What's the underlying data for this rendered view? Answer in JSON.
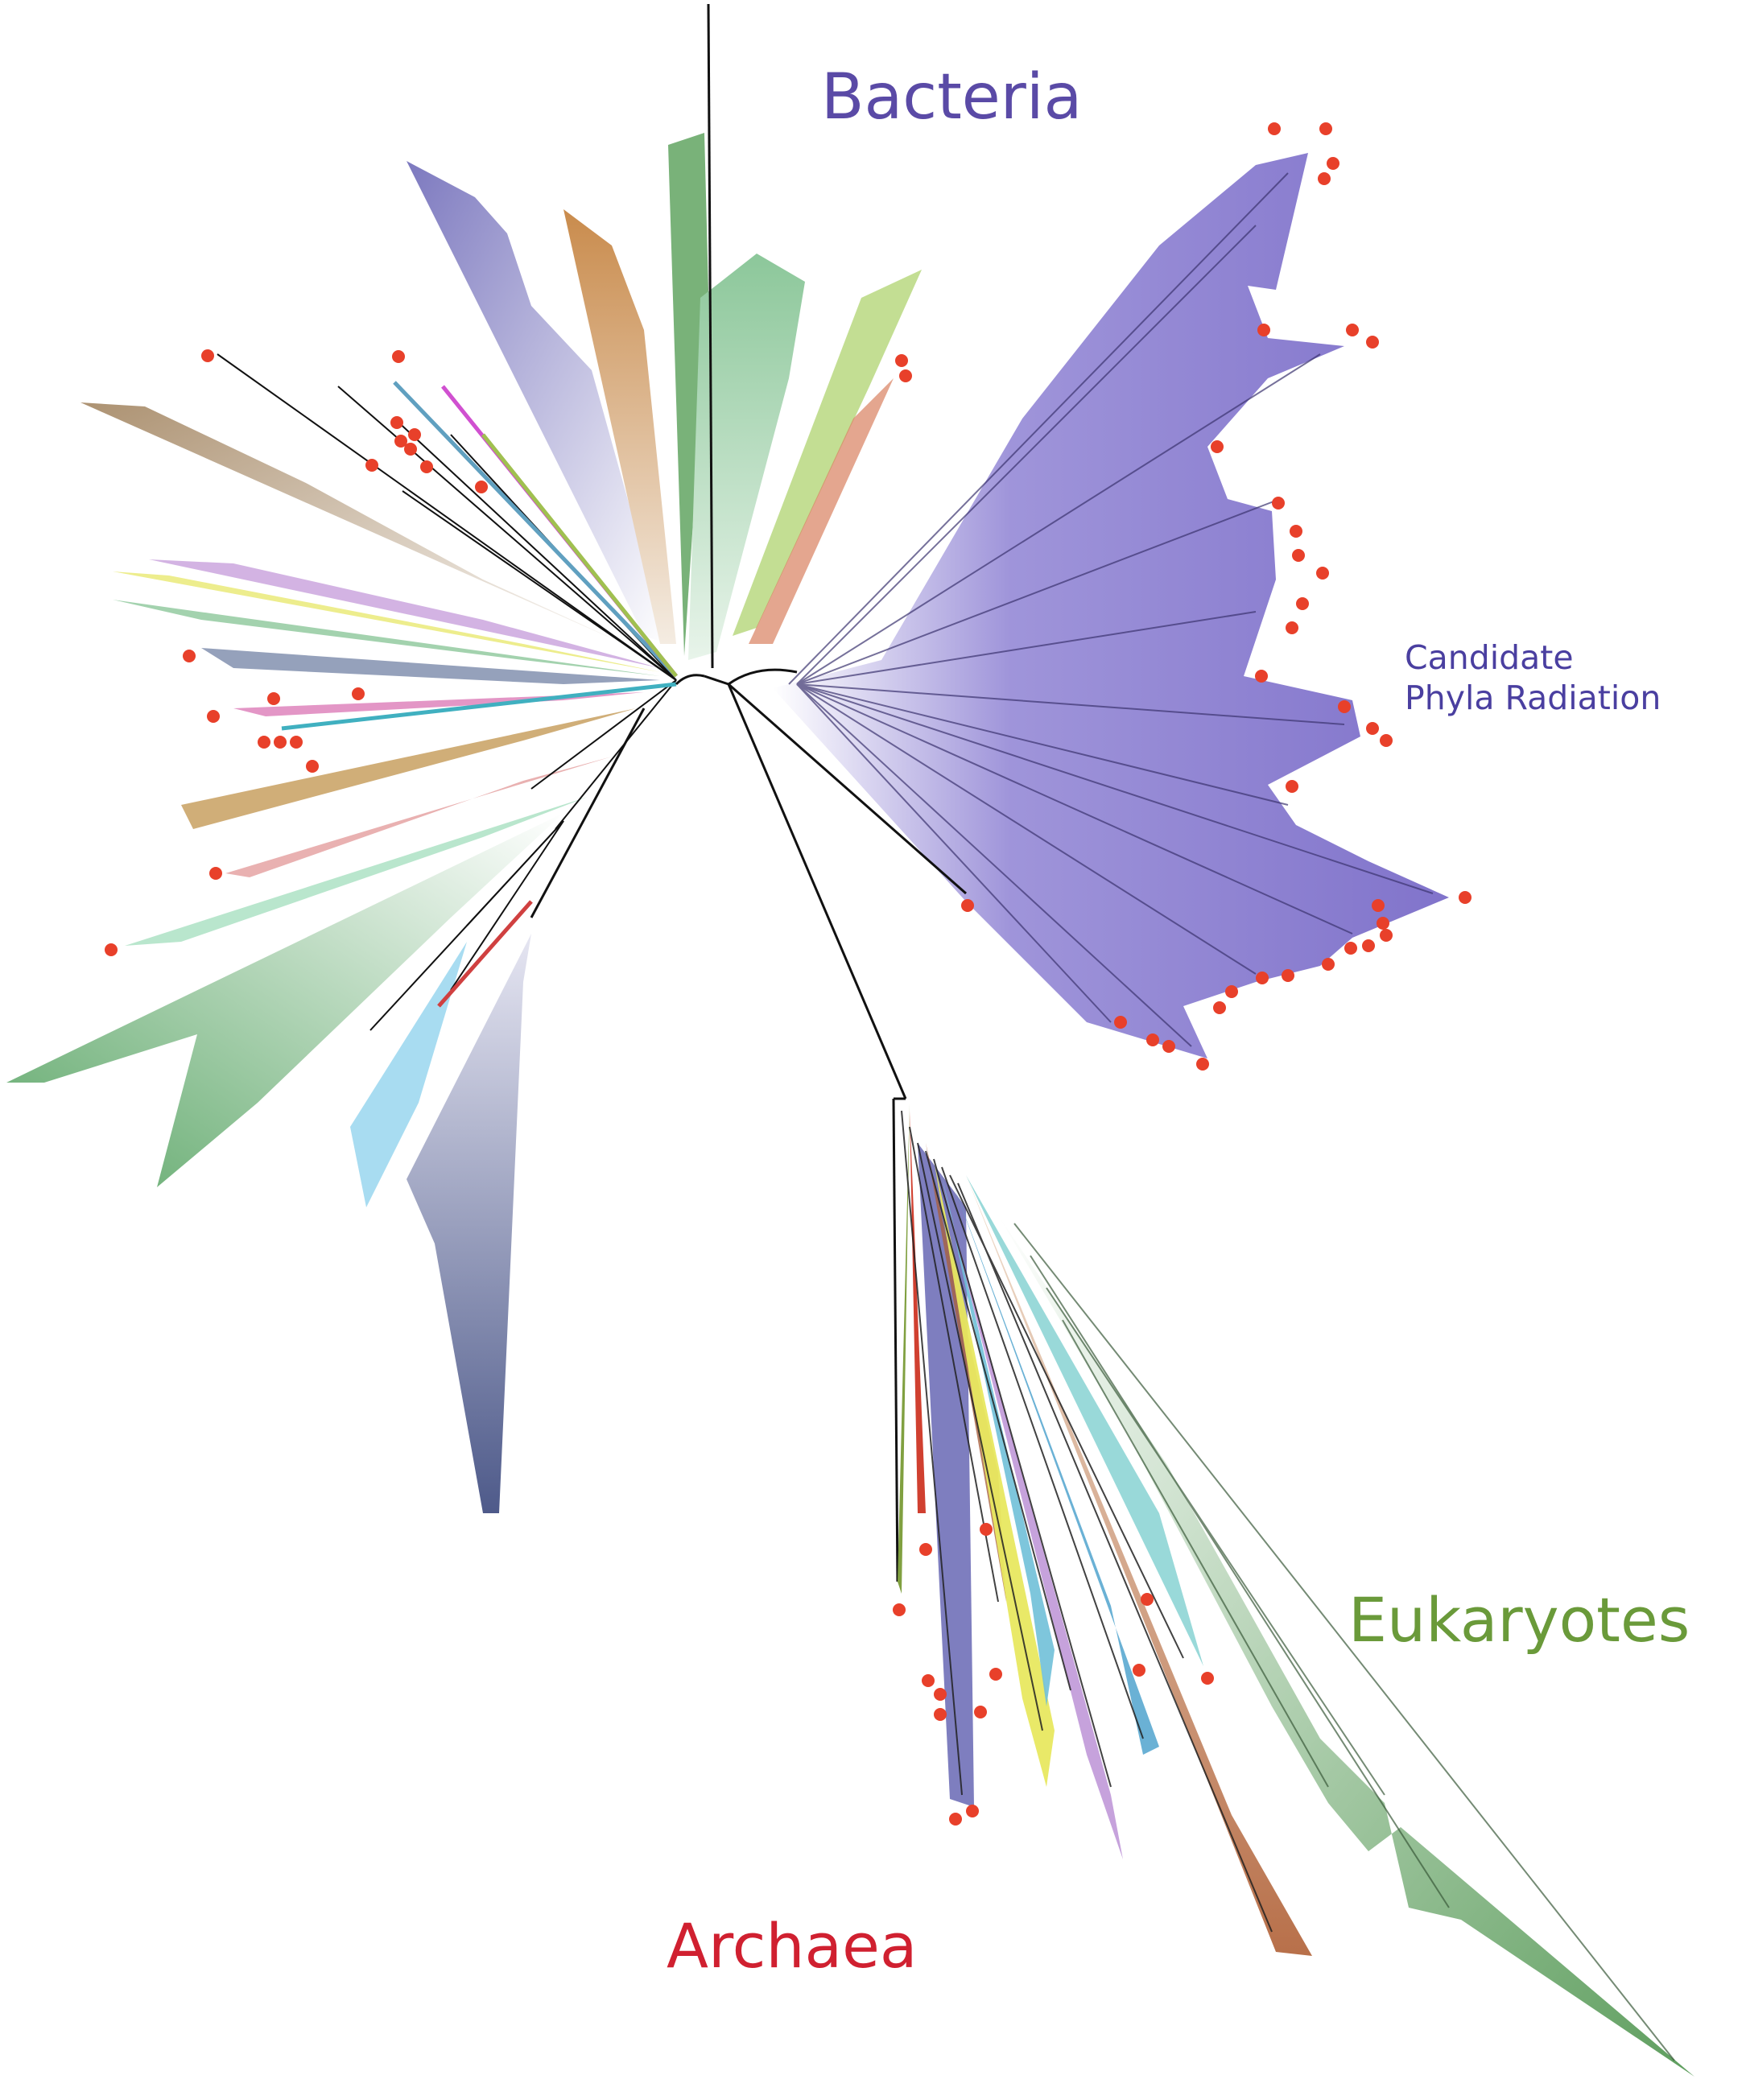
{
  "labels": {
    "bacteria": "Bacteria",
    "cpr_line1": "Candidate",
    "cpr_line2": "Phyla Radiation",
    "eukaryotes": "Eukaryotes",
    "archaea": "Archaea"
  },
  "colors": {
    "bacteria": "#5a4aa6",
    "cpr": "#4a3fa0",
    "eukaryotes": "#6a9a3a",
    "archaea": "#d02030",
    "marker": "#e8402a"
  },
  "marker_meaning": "red-dot"
}
